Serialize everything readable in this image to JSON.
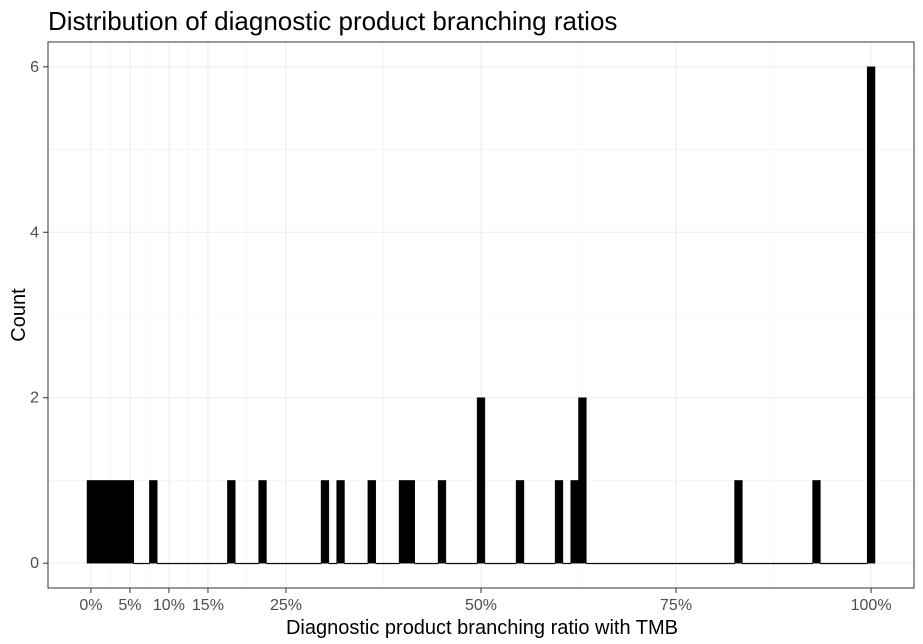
{
  "chart_data": {
    "type": "histogram",
    "title": "Distribution of diagnostic product branching ratios",
    "xlabel": "Diagnostic product branching ratio with TMB",
    "ylabel": "Count",
    "x_ticks": [
      {
        "value": 0,
        "label": "0%"
      },
      {
        "value": 0.05,
        "label": "5%"
      },
      {
        "value": 0.1,
        "label": "10%"
      },
      {
        "value": 0.15,
        "label": "15%"
      },
      {
        "value": 0.25,
        "label": "25%"
      },
      {
        "value": 0.5,
        "label": "50%"
      },
      {
        "value": 0.75,
        "label": "75%"
      },
      {
        "value": 1.0,
        "label": "100%"
      }
    ],
    "y_ticks": [
      {
        "value": 0,
        "label": "0"
      },
      {
        "value": 2,
        "label": "2"
      },
      {
        "value": 4,
        "label": "4"
      },
      {
        "value": 6,
        "label": "6"
      }
    ],
    "xlim": [
      -0.055,
      1.055
    ],
    "ylim": [
      -0.3,
      6.3
    ],
    "bin_width": 0.01,
    "bins_start": -0.005,
    "counts": [
      1,
      1,
      1,
      1,
      1,
      1,
      0,
      0,
      1,
      0,
      0,
      0,
      0,
      0,
      0,
      0,
      0,
      0,
      1,
      0,
      0,
      0,
      1,
      0,
      0,
      0,
      0,
      0,
      0,
      0,
      1,
      0,
      1,
      0,
      0,
      0,
      1,
      0,
      0,
      0,
      1,
      1,
      0,
      0,
      0,
      1,
      0,
      0,
      0,
      0,
      2,
      0,
      0,
      0,
      0,
      1,
      0,
      0,
      0,
      0,
      1,
      0,
      1,
      2,
      0,
      0,
      0,
      0,
      0,
      0,
      0,
      0,
      0,
      0,
      0,
      0,
      0,
      0,
      0,
      0,
      0,
      0,
      0,
      1,
      0,
      0,
      0,
      0,
      0,
      0,
      0,
      0,
      0,
      1,
      0,
      0,
      0,
      0,
      0,
      0,
      6
    ],
    "bar_color": "#000000",
    "grid": true,
    "legend": "none"
  }
}
